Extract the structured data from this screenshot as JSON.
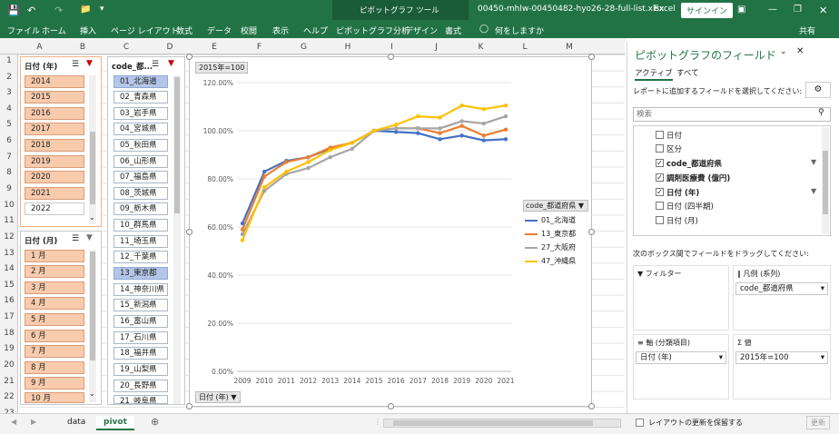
{
  "titlebar": {
    "save_icon": "save-icon",
    "context_title": "ピボットグラフ ツール",
    "filename": "00450-mhlw-00450482-hyo26-28-full-list.xlsx",
    "app": "Excel",
    "signin": "サインイン"
  },
  "ribbon": {
    "tabs": [
      "ファイル",
      "ホーム",
      "挿入",
      "ページ レイアウト",
      "数式",
      "データ",
      "校閲",
      "表示",
      "ヘルプ",
      "ピボットグラフ分析",
      "デザイン",
      "書式"
    ],
    "tell_me": "何をしますか",
    "share": "共有"
  },
  "columns": [
    "A",
    "B",
    "C",
    "D",
    "E",
    "F",
    "G",
    "H",
    "I",
    "J",
    "K",
    "L",
    "M"
  ],
  "rows": [
    "1",
    "2",
    "3",
    "4",
    "5",
    "6",
    "7",
    "8",
    "9",
    "10",
    "11",
    "12",
    "13",
    "14",
    "15",
    "16",
    "17",
    "18",
    "19",
    "20",
    "21",
    "22",
    "23"
  ],
  "slicer_year": {
    "title": "日付 (年)",
    "items": [
      "2014",
      "2015",
      "2016",
      "2017",
      "2018",
      "2019",
      "2020",
      "2021",
      "2022"
    ],
    "selected": [
      true,
      true,
      true,
      true,
      true,
      true,
      true,
      true,
      false
    ]
  },
  "slicer_month": {
    "title": "日付 (月)",
    "items": [
      "1 月",
      "2 月",
      "3 月",
      "4 月",
      "5 月",
      "6 月",
      "7 月",
      "8 月",
      "9 月",
      "10 月"
    ]
  },
  "slicer_pref": {
    "title": "code_都...",
    "items": [
      "01_北海道",
      "02_青森県",
      "03_岩手県",
      "04_宮城県",
      "05_秋田県",
      "06_山形県",
      "07_福島県",
      "08_茨城県",
      "09_栃木県",
      "10_群馬県",
      "11_埼玉県",
      "12_千葉県",
      "13_東京都",
      "14_神奈川県",
      "15_新潟県",
      "16_富山県",
      "17_石川県",
      "18_福井県",
      "19_山梨県",
      "20_長野県",
      "21_岐阜県"
    ],
    "selected": [
      true,
      false,
      false,
      false,
      false,
      false,
      false,
      false,
      false,
      false,
      false,
      false,
      true,
      false,
      false,
      false,
      false,
      false,
      false,
      false,
      false
    ]
  },
  "chart_data": {
    "type": "line",
    "value_button": "2015年=100",
    "axis_button": "日付 (年)",
    "legend_title": "code_都道府県",
    "x": [
      "2009",
      "2010",
      "2011",
      "2012",
      "2013",
      "2014",
      "2015",
      "2016",
      "2017",
      "2018",
      "2019",
      "2020",
      "2021"
    ],
    "y_ticks": [
      "0.00%",
      "20.00%",
      "40.00%",
      "60.00%",
      "80.00%",
      "100.00%",
      "120.00%"
    ],
    "ylim": [
      0,
      120
    ],
    "grid": true,
    "legend_position": "right",
    "series": [
      {
        "name": "01_北海道",
        "color": "#4472c4",
        "values": [
          61.5,
          83,
          87.5,
          89,
          92.5,
          95,
          100,
          99.5,
          99,
          96.5,
          98,
          96,
          96.5
        ]
      },
      {
        "name": "13_東京都",
        "color": "#ed7d31",
        "values": [
          59,
          81,
          87,
          89,
          93,
          95,
          100,
          101,
          101,
          99,
          102,
          98,
          100.5
        ]
      },
      {
        "name": "27_大阪府",
        "color": "#a5a5a5",
        "values": [
          57,
          75,
          82,
          84.5,
          89,
          92.5,
          100,
          101,
          101,
          101,
          104,
          103,
          106
        ]
      },
      {
        "name": "47_沖縄県",
        "color": "#ffc000",
        "values": [
          54.5,
          76.5,
          83,
          87,
          92,
          95,
          100,
          102.5,
          106,
          105.5,
          110.5,
          109,
          110.5
        ]
      }
    ]
  },
  "panel": {
    "title": "ピボットグラフのフィールド",
    "tab_active": "アクティブ",
    "tab_all": "すべて",
    "instruction": "レポートに追加するフィールドを選択してください:",
    "search_placeholder": "検索",
    "fields": [
      {
        "label": "日付",
        "checked": false,
        "filter": false
      },
      {
        "label": "区分",
        "checked": false,
        "filter": false
      },
      {
        "label": "code_都道府県",
        "checked": true,
        "filter": true
      },
      {
        "label": "調剤医療費 (億円)",
        "checked": true,
        "filter": false
      },
      {
        "label": "日付 (年)",
        "checked": true,
        "filter": true
      },
      {
        "label": "日付 (四半期)",
        "checked": false,
        "filter": false
      },
      {
        "label": "日付 (月)",
        "checked": false,
        "filter": false
      }
    ],
    "drag_instruction": "次のボックス間でフィールドをドラッグしてください:",
    "filter_label": "フィルター",
    "legend_label": "凡例 (系列)",
    "legend_value": "code_都道府県",
    "axis_label": "軸 (分類項目)",
    "axis_value": "日付 (年)",
    "values_label": "値",
    "values_value": "2015年=100",
    "defer_label": "レイアウトの更新を保留する",
    "update_label": "更新"
  },
  "sheets": [
    "data",
    "pivot"
  ],
  "active_sheet": "pivot"
}
